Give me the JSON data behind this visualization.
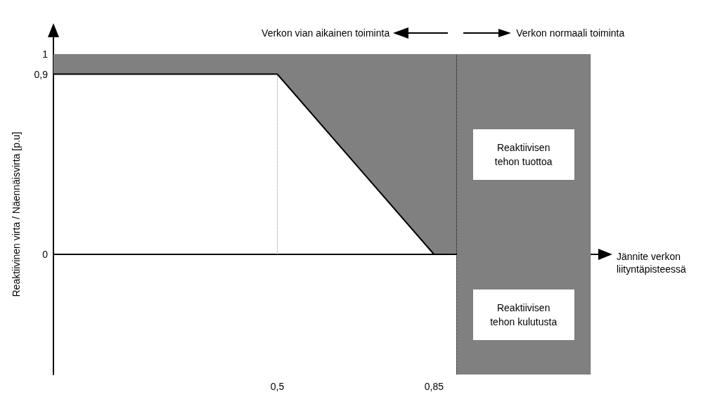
{
  "chart_data": {
    "type": "line",
    "xlabel": "Jännite verkon liityntäpisteessä",
    "ylabel": "Reaktiivinen virta / Näennäisvirta [p.u]",
    "xlim": [
      0,
      1.22
    ],
    "ylim": [
      -0.6,
      1
    ],
    "xticks": [
      {
        "value": 0.5,
        "label": "0,5"
      },
      {
        "value": 0.85,
        "label": "0,85"
      }
    ],
    "yticks": [
      0,
      {
        "value": 0.9,
        "label": "0,9"
      },
      1
    ],
    "marker": "none",
    "series": [
      {
        "type": "area",
        "color": "#808080",
        "x": [
          0,
          0.5,
          0.85,
          0.9
        ],
        "values": [
          1,
          1,
          1,
          1
        ]
      },
      {
        "color": "#000000",
        "x": [
          0,
          0.5,
          0.85,
          0.9
        ],
        "values": [
          0.9,
          0.9,
          0,
          0
        ]
      }
    ],
    "bands": [
      {
        "axis": "x",
        "from": 0.9,
        "to": 1.2,
        "color": "#808080"
      }
    ],
    "ref_lines": [
      {
        "axis": "x",
        "value": 0.5,
        "line_style": "dotted",
        "color": "#999999"
      },
      {
        "axis": "x",
        "value": 0.9,
        "line_style": "dotted",
        "color": "#000000"
      }
    ],
    "annotations": [
      "Verkon vian aikainen toiminta",
      "Verkon normaali toiminta",
      "Reaktiivisen tehon tuottoa",
      "Reaktiivisen tehon kulutusta"
    ]
  }
}
